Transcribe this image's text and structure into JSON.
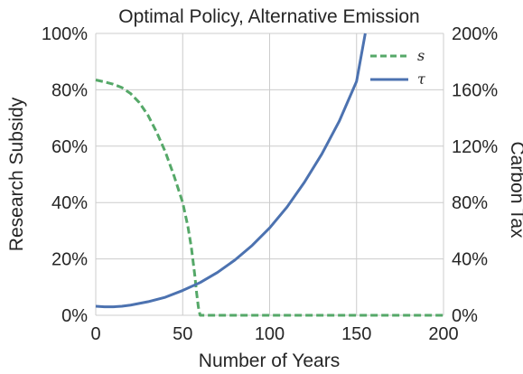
{
  "chart_data": {
    "type": "line",
    "title": "Optimal Policy, Alternative Emission",
    "xlabel": "Number of Years",
    "ylabel_left": "Research Subsidy",
    "ylabel_right": "Carbon Tax",
    "xlim": [
      0,
      200
    ],
    "ylim_left": [
      0,
      100
    ],
    "ylim_right": [
      0,
      200
    ],
    "x_ticks": [
      "0",
      "50",
      "100",
      "150",
      "200"
    ],
    "y_ticks_left": [
      "0%",
      "20%",
      "40%",
      "60%",
      "80%",
      "100%"
    ],
    "y_ticks_right": [
      "0%",
      "40%",
      "80%",
      "120%",
      "160%",
      "200%"
    ],
    "grid": true,
    "legend_position": "top-right",
    "series": [
      {
        "name": "s",
        "axis": "left",
        "style": "dashed",
        "color": "#55a868",
        "x": [
          0,
          5,
          10,
          15,
          20,
          25,
          30,
          35,
          40,
          45,
          50,
          53,
          55,
          57,
          58,
          59,
          60,
          65,
          80,
          100,
          120,
          140,
          160,
          180,
          200
        ],
        "y": [
          83.5,
          82.8,
          82.0,
          80.8,
          78.7,
          75.5,
          71.0,
          65.0,
          58.0,
          49.5,
          40.0,
          31.5,
          24.0,
          14.0,
          8.0,
          3.0,
          0,
          0,
          0,
          0,
          0,
          0,
          0,
          0,
          0
        ]
      },
      {
        "name": "τ",
        "axis": "right",
        "style": "solid",
        "color": "#4c72b0",
        "x": [
          0,
          5,
          10,
          15,
          20,
          30,
          40,
          50,
          60,
          70,
          80,
          90,
          100,
          110,
          120,
          130,
          140,
          150,
          155
        ],
        "y": [
          6.4,
          6.0,
          6.0,
          6.4,
          7.2,
          9.6,
          12.8,
          17.6,
          23.2,
          30.4,
          39.2,
          49.6,
          62.0,
          76.8,
          94.4,
          114.4,
          137.6,
          166.0,
          200.0
        ]
      }
    ]
  }
}
